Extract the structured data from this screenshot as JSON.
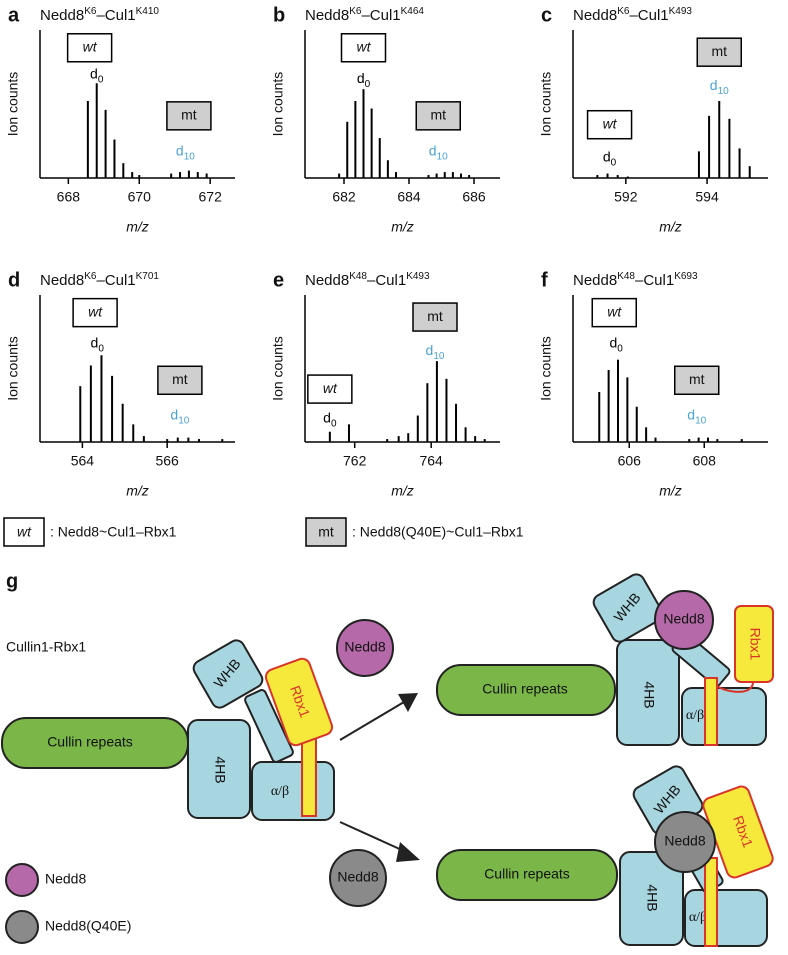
{
  "chart_data": [
    {
      "type": "stem",
      "letter": "a",
      "title": [
        "Nedd8",
        "K6",
        "–Cul1",
        "K410"
      ],
      "y_label": "Ion counts",
      "x_label": "m/z",
      "xlim": [
        667.2,
        672.7
      ],
      "xticks": [
        668,
        670,
        672
      ],
      "ylim": [
        0,
        100
      ],
      "x": [
        668.55,
        668.8,
        669.05,
        669.3,
        669.55,
        669.8,
        670.0,
        670.9,
        671.15,
        671.4,
        671.65,
        671.9
      ],
      "values": [
        52,
        64,
        46,
        26,
        10,
        4,
        2,
        3,
        4,
        5,
        4,
        3
      ],
      "annotations": [
        {
          "text": "wt",
          "style": "box-white",
          "x": 668.6,
          "y": 88
        },
        {
          "text": "d",
          "sub": "0",
          "x": 668.8,
          "y": 70,
          "color": "#000000"
        },
        {
          "text": "mt",
          "style": "box-gray",
          "x": 671.4,
          "y": 42
        },
        {
          "text": "d",
          "sub": "10",
          "x": 671.3,
          "y": 18,
          "color": "#4aa3d8"
        }
      ]
    },
    {
      "type": "stem",
      "letter": "b",
      "title": [
        "Nedd8",
        "K6",
        "–Cul1",
        "K464"
      ],
      "y_label": "Ion counts",
      "x_label": "m/z",
      "xlim": [
        680.8,
        686.8
      ],
      "xticks": [
        682,
        684,
        686
      ],
      "ylim": [
        0,
        100
      ],
      "x": [
        681.85,
        682.1,
        682.35,
        682.6,
        682.85,
        683.1,
        683.35,
        683.6,
        684.6,
        684.85,
        685.1,
        685.35,
        685.6,
        685.85
      ],
      "values": [
        3,
        38,
        52,
        60,
        47,
        27,
        12,
        4,
        2,
        3,
        4,
        4,
        3,
        2
      ],
      "annotations": [
        {
          "text": "wt",
          "style": "box-white",
          "x": 682.6,
          "y": 88
        },
        {
          "text": "d",
          "sub": "0",
          "x": 682.6,
          "y": 67,
          "color": "#000000"
        },
        {
          "text": "mt",
          "style": "box-gray",
          "x": 684.9,
          "y": 42
        },
        {
          "text": "d",
          "sub": "10",
          "x": 684.9,
          "y": 18,
          "color": "#4aa3d8"
        }
      ]
    },
    {
      "type": "stem",
      "letter": "c",
      "title": [
        "Nedd8",
        "K6",
        "–Cul1",
        "K493"
      ],
      "y_label": "Ion counts",
      "x_label": "m/z",
      "xlim": [
        590.7,
        595.5
      ],
      "xticks": [
        592,
        594
      ],
      "ylim": [
        0,
        100
      ],
      "x": [
        591.3,
        591.55,
        591.8,
        592.05,
        593.8,
        594.05,
        594.3,
        594.55,
        594.8,
        595.05
      ],
      "values": [
        2,
        3,
        2,
        1,
        18,
        42,
        52,
        40,
        20,
        8
      ],
      "annotations": [
        {
          "text": "wt",
          "style": "box-white",
          "x": 591.6,
          "y": 36
        },
        {
          "text": "d",
          "sub": "0",
          "x": 591.6,
          "y": 14,
          "color": "#000000"
        },
        {
          "text": "mt",
          "style": "box-gray",
          "x": 594.3,
          "y": 85
        },
        {
          "text": "d",
          "sub": "10",
          "x": 594.3,
          "y": 62,
          "color": "#4aa3d8"
        }
      ]
    },
    {
      "type": "stem",
      "letter": "d",
      "title": [
        "Nedd8",
        "K6",
        "–Cul1",
        "K701"
      ],
      "y_label": "Ion counts",
      "x_label": "m/z",
      "xlim": [
        563.0,
        567.6
      ],
      "xticks": [
        564,
        566
      ],
      "ylim": [
        0,
        100
      ],
      "x": [
        563.95,
        564.2,
        564.45,
        564.7,
        564.95,
        565.2,
        565.45,
        566.0,
        566.25,
        566.5,
        566.75,
        567.3
      ],
      "values": [
        38,
        52,
        59,
        45,
        26,
        12,
        4,
        2,
        3,
        3,
        2,
        2
      ],
      "annotations": [
        {
          "text": "wt",
          "style": "box-white",
          "x": 564.3,
          "y": 88
        },
        {
          "text": "d",
          "sub": "0",
          "x": 564.35,
          "y": 67,
          "color": "#000000"
        },
        {
          "text": "mt",
          "style": "box-gray",
          "x": 566.3,
          "y": 42
        },
        {
          "text": "d",
          "sub": "10",
          "x": 566.3,
          "y": 18,
          "color": "#4aa3d8"
        }
      ]
    },
    {
      "type": "stem",
      "letter": "e",
      "title": [
        "Nedd8",
        "K48",
        "–Cul1",
        "K493"
      ],
      "y_label": "Ion counts",
      "x_label": "m/z",
      "xlim": [
        760.7,
        765.8
      ],
      "xticks": [
        762,
        764
      ],
      "ylim": [
        0,
        100
      ],
      "x": [
        761.35,
        761.85,
        762.85,
        763.15,
        763.4,
        763.65,
        763.9,
        764.15,
        764.4,
        764.65,
        764.9,
        765.15,
        765.4
      ],
      "values": [
        7,
        12,
        2,
        4,
        6,
        18,
        40,
        55,
        43,
        26,
        10,
        4,
        2
      ],
      "annotations": [
        {
          "text": "wt",
          "style": "box-white",
          "x": 761.35,
          "y": 36
        },
        {
          "text": "d",
          "sub": "0",
          "x": 761.35,
          "y": 16,
          "color": "#000000"
        },
        {
          "text": "mt",
          "style": "box-gray",
          "x": 764.1,
          "y": 85
        },
        {
          "text": "d",
          "sub": "10",
          "x": 764.1,
          "y": 62,
          "color": "#4aa3d8"
        }
      ]
    },
    {
      "type": "stem",
      "letter": "f",
      "title": [
        "Nedd8",
        "K48",
        "–Cul1",
        "K693"
      ],
      "y_label": "Ion counts",
      "x_label": "m/z",
      "xlim": [
        604.5,
        609.7
      ],
      "xticks": [
        606,
        608
      ],
      "ylim": [
        0,
        100
      ],
      "x": [
        605.2,
        605.45,
        605.7,
        605.95,
        606.2,
        606.45,
        606.7,
        607.6,
        607.85,
        608.1,
        608.35,
        609.0
      ],
      "values": [
        34,
        49,
        56,
        44,
        24,
        10,
        3,
        2,
        3,
        3,
        2,
        2
      ],
      "annotations": [
        {
          "text": "wt",
          "style": "box-white",
          "x": 605.6,
          "y": 88
        },
        {
          "text": "d",
          "sub": "0",
          "x": 605.65,
          "y": 67,
          "color": "#000000"
        },
        {
          "text": "mt",
          "style": "box-gray",
          "x": 607.8,
          "y": 42
        },
        {
          "text": "d",
          "sub": "10",
          "x": 607.8,
          "y": 18,
          "color": "#4aa3d8"
        }
      ]
    }
  ],
  "legend": {
    "wt": "wt",
    "wt_text": ": Nedd8~Cul1–Rbx1",
    "mt": "mt",
    "mt_text": ": Nedd8(Q40E)~Cul1–Rbx1"
  },
  "diagram": {
    "letter": "g",
    "title": "Cullin1-Rbx1",
    "complexes": [
      {
        "cullin": "Cullin repeats",
        "hb": "4HB",
        "ab": "α/β",
        "whb": "WHB",
        "rbx": "Rbx1"
      },
      {
        "cullin": "Cullin repeats",
        "hb": "4HB",
        "ab": "α/β",
        "whb": "WHB",
        "rbx": "Rbx1",
        "nedd8": "Nedd8"
      },
      {
        "cullin": "Cullin repeats",
        "hb": "4HB",
        "ab": "α/β",
        "whb": "WHB",
        "rbx": "Rbx1",
        "nedd8": "Nedd8"
      }
    ],
    "free": [
      "Nedd8",
      "Nedd8"
    ],
    "legend": [
      "Nedd8",
      "Nedd8(Q40E)"
    ]
  }
}
